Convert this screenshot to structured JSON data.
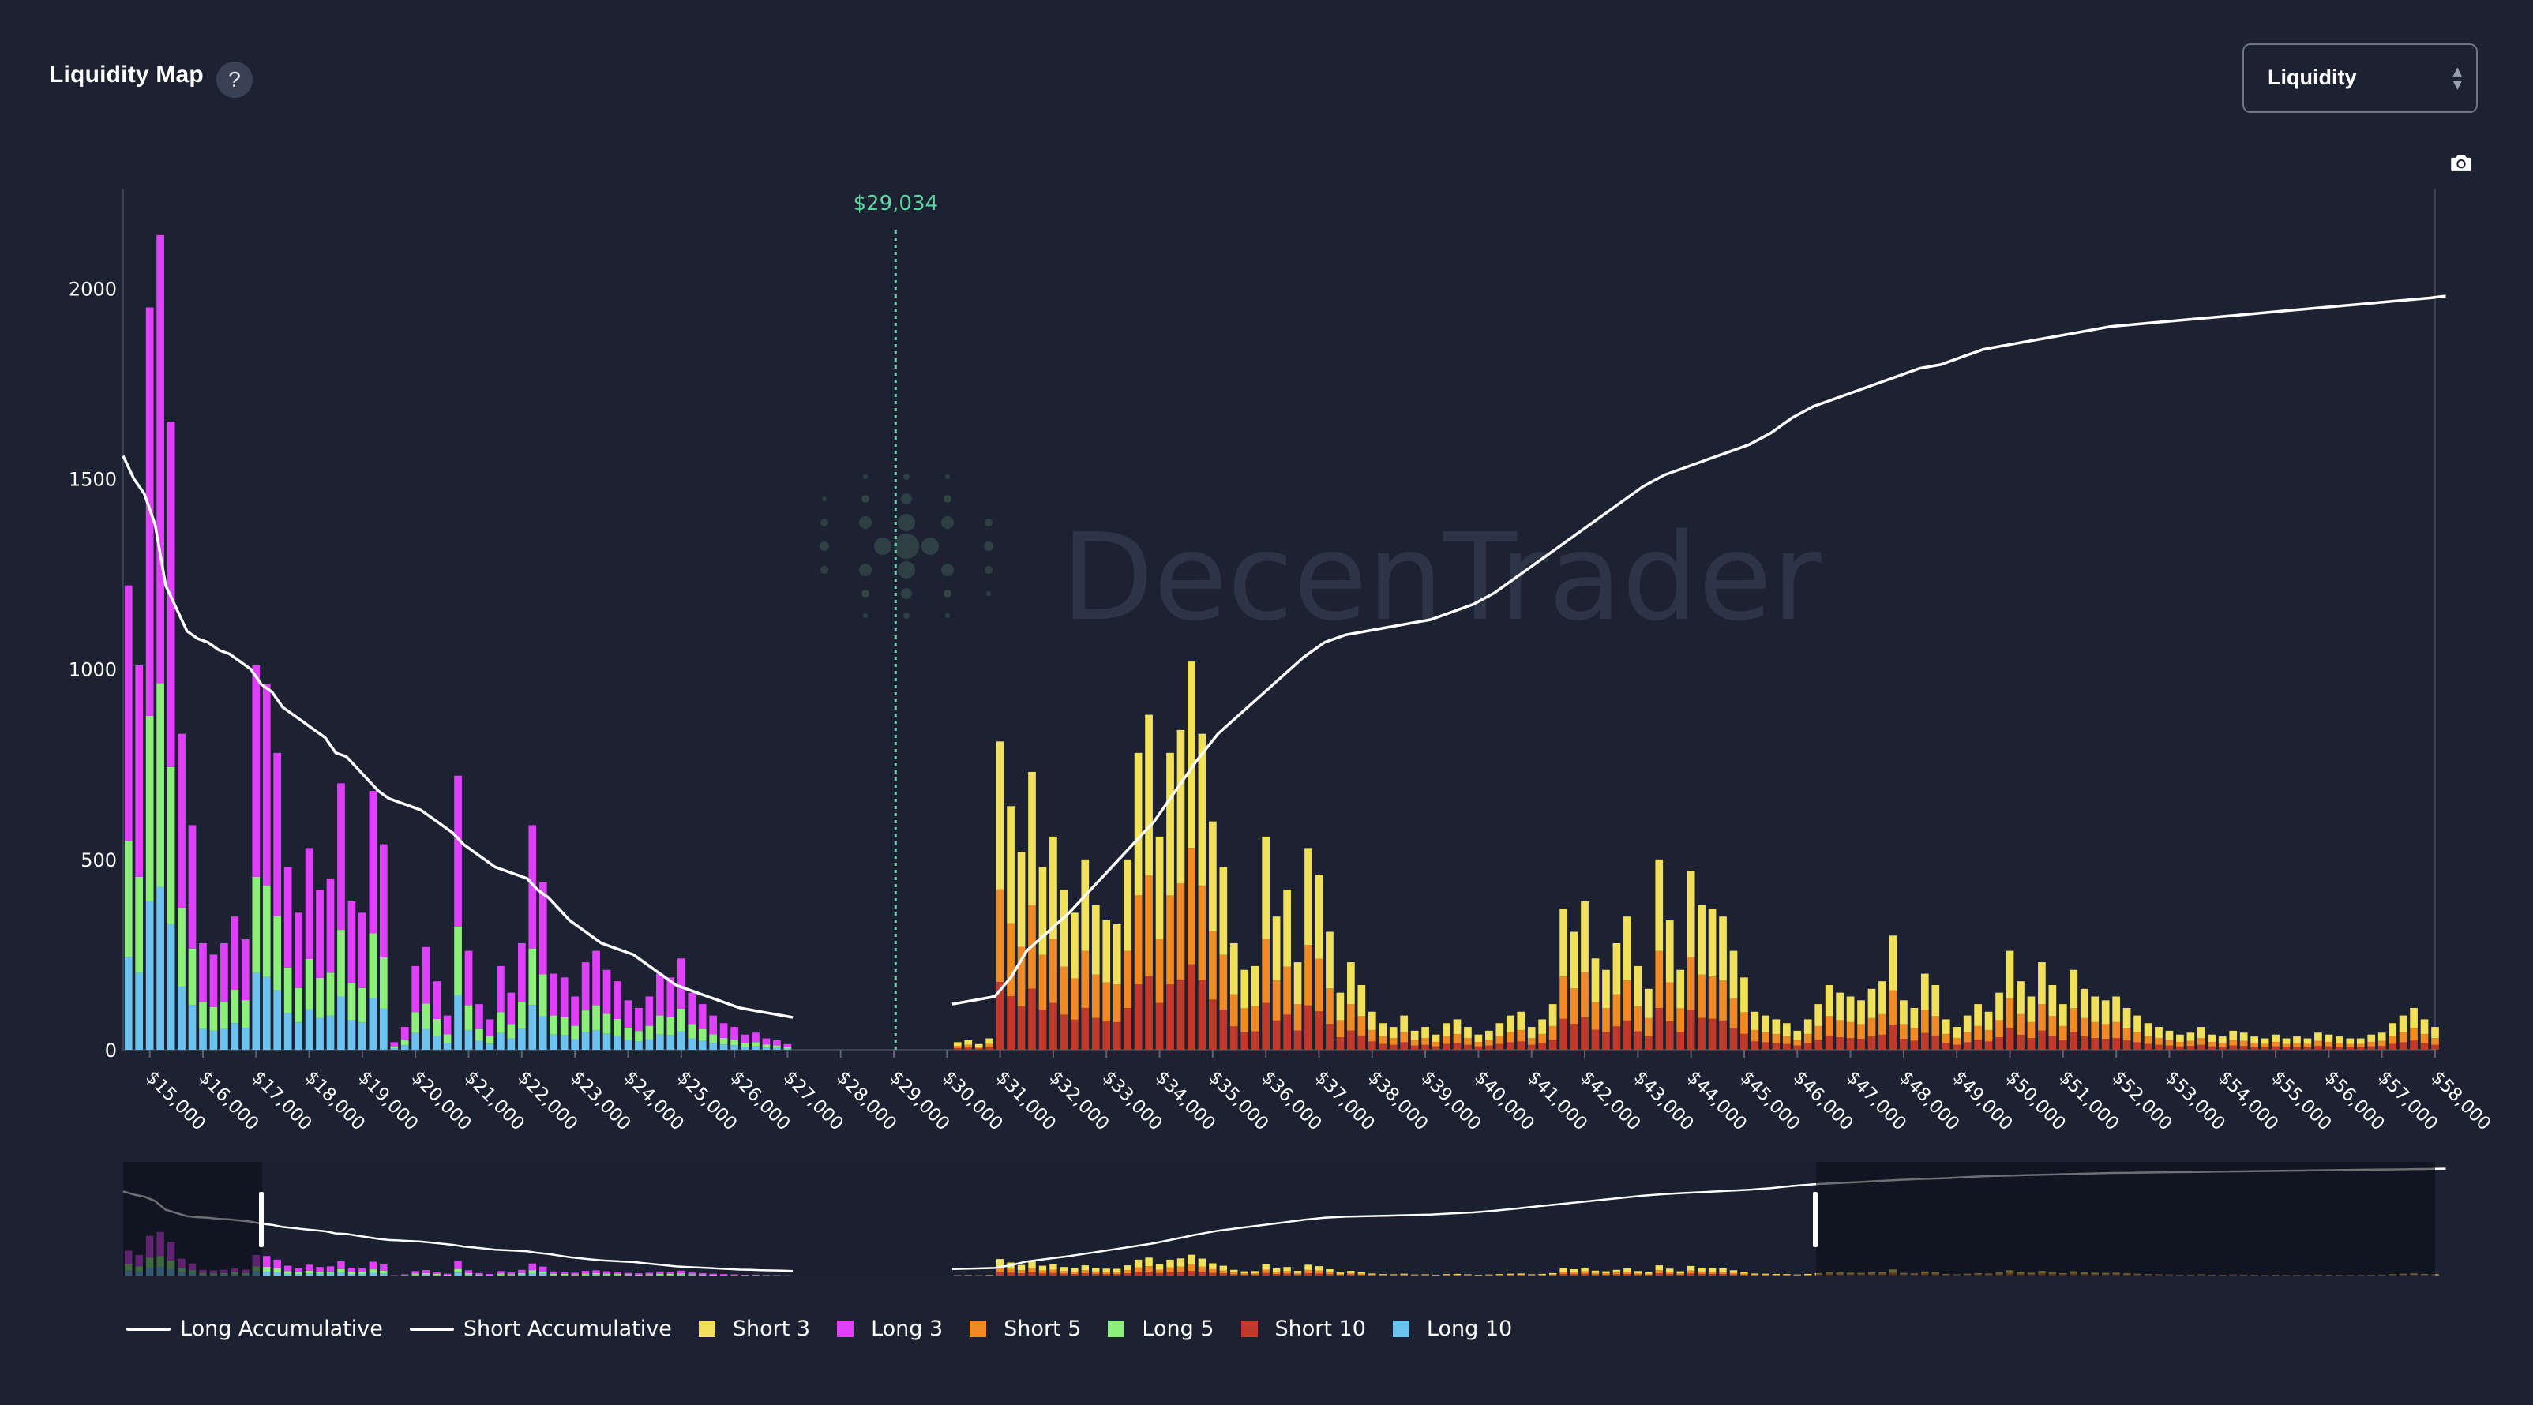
{
  "header": {
    "title": "Liquidity Map",
    "help_label": "?",
    "select_value": "Liquidity"
  },
  "icons": {
    "help": "question-mark-icon",
    "camera": "camera-icon",
    "select": "chevron-up-down-icon"
  },
  "watermark": "DecenTrader",
  "colors": {
    "background": "#1c2232",
    "short3": "#f1e05a",
    "long3": "#e040fb",
    "short5": "#f08a24",
    "long5": "#8cf07a",
    "short10": "#c0392b",
    "long10": "#6cc3f0",
    "current_price": "#5fd3a0",
    "cumulative": "#ffffff"
  },
  "chart_data": {
    "type": "bar",
    "subtype": "stacked",
    "current_price": 29034,
    "current_price_label": "$29,034",
    "xlim": [
      14500,
      58000
    ],
    "ylim": [
      0,
      2260
    ],
    "yticks": [
      0,
      500,
      1000,
      1500,
      2000
    ],
    "xticks": [
      "$15,000",
      "$16,000",
      "$17,000",
      "$18,000",
      "$19,000",
      "$20,000",
      "$21,000",
      "$22,000",
      "$23,000",
      "$24,000",
      "$25,000",
      "$26,000",
      "$27,000",
      "$28,000",
      "$29,000",
      "$30,000",
      "$31,000",
      "$32,000",
      "$33,000",
      "$34,000",
      "$35,000",
      "$36,000",
      "$37,000",
      "$38,000",
      "$39,000",
      "$40,000",
      "$41,000",
      "$42,000",
      "$43,000",
      "$44,000",
      "$45,000",
      "$46,000",
      "$47,000",
      "$48,000",
      "$49,000",
      "$50,000",
      "$51,000",
      "$52,000",
      "$53,000",
      "$54,000",
      "$55,000",
      "$56,000",
      "$57,000",
      "$58,000"
    ],
    "legend": [
      "Long Accumulative",
      "Short Accumulative",
      "Short 3",
      "Long 3",
      "Short 5",
      "Long 5",
      "Short 10",
      "Long 10"
    ],
    "long_totals": {
      "x": [
        14600,
        14800,
        15000,
        15200,
        15400,
        15600,
        15800,
        16000,
        16200,
        16400,
        16600,
        16800,
        17000,
        17200,
        17400,
        17600,
        17800,
        18000,
        18200,
        18400,
        18600,
        18800,
        19000,
        19200,
        19400,
        19600,
        19800,
        20000,
        20200,
        20400,
        20600,
        20800,
        21000,
        21200,
        21400,
        21600,
        21800,
        22000,
        22200,
        22400,
        22600,
        22800,
        23000,
        23200,
        23400,
        23600,
        23800,
        24000,
        24200,
        24400,
        24600,
        24800,
        25000,
        25200,
        25400,
        25600,
        25800,
        26000,
        26200,
        26400,
        26600,
        26800,
        27000
      ],
      "y": [
        1220,
        1010,
        1950,
        2140,
        1650,
        830,
        590,
        280,
        250,
        280,
        350,
        290,
        1010,
        960,
        780,
        480,
        360,
        530,
        420,
        450,
        700,
        390,
        360,
        680,
        540,
        20,
        60,
        220,
        270,
        180,
        90,
        720,
        260,
        120,
        80,
        220,
        150,
        280,
        590,
        440,
        200,
        190,
        140,
        230,
        260,
        210,
        180,
        130,
        110,
        140,
        200,
        190,
        240,
        150,
        120,
        90,
        70,
        60,
        40,
        45,
        30,
        25,
        15
      ],
      "long5_frac": 0.25,
      "long10_frac": 0.2
    },
    "short_totals": {
      "x": [
        30200,
        30400,
        30600,
        30800,
        31000,
        31200,
        31400,
        31600,
        31800,
        32000,
        32200,
        32400,
        32600,
        32800,
        33000,
        33200,
        33400,
        33600,
        33800,
        34000,
        34200,
        34400,
        34600,
        34800,
        35000,
        35200,
        35400,
        35600,
        35800,
        36000,
        36200,
        36400,
        36600,
        36800,
        37000,
        37200,
        37400,
        37600,
        37800,
        38000,
        38200,
        38400,
        38600,
        38800,
        39000,
        39200,
        39400,
        39600,
        39800,
        40000,
        40200,
        40400,
        40600,
        40800,
        41000,
        41200,
        41400,
        41600,
        41800,
        42000,
        42200,
        42400,
        42600,
        42800,
        43000,
        43200,
        43400,
        43600,
        43800,
        44000,
        44200,
        44400,
        44600,
        44800,
        45000,
        45200,
        45400,
        45600,
        45800,
        46000,
        46200,
        46400,
        46600,
        46800,
        47000,
        47200,
        47400,
        47600,
        47800,
        48000,
        48200,
        48400,
        48600,
        48800,
        49000,
        49200,
        49400,
        49600,
        49800,
        50000,
        50200,
        50400,
        50600,
        50800,
        51000,
        51200,
        51400,
        51600,
        51800,
        52000,
        52200,
        52400,
        52600,
        52800,
        53000,
        53200,
        53400,
        53600,
        53800,
        54000,
        54200,
        54400,
        54600,
        54800,
        55000,
        55200,
        55400,
        55600,
        55800,
        56000,
        56200,
        56400,
        56600,
        56800,
        57000,
        57200,
        57400,
        57600,
        57800,
        58000
      ],
      "y": [
        20,
        25,
        15,
        30,
        810,
        640,
        520,
        730,
        480,
        560,
        420,
        360,
        500,
        380,
        340,
        330,
        500,
        780,
        880,
        560,
        780,
        840,
        1020,
        830,
        600,
        480,
        280,
        210,
        220,
        560,
        350,
        420,
        230,
        530,
        460,
        310,
        150,
        230,
        170,
        100,
        70,
        60,
        90,
        50,
        60,
        40,
        70,
        80,
        60,
        40,
        50,
        70,
        90,
        100,
        60,
        80,
        120,
        370,
        310,
        390,
        240,
        210,
        280,
        350,
        220,
        160,
        500,
        340,
        210,
        470,
        380,
        370,
        350,
        260,
        190,
        100,
        90,
        80,
        70,
        50,
        80,
        120,
        170,
        150,
        140,
        130,
        160,
        180,
        300,
        130,
        110,
        200,
        170,
        80,
        60,
        90,
        120,
        100,
        150,
        260,
        180,
        140,
        230,
        170,
        120,
        210,
        160,
        140,
        130,
        140,
        110,
        90,
        70,
        60,
        50,
        40,
        45,
        60,
        40,
        35,
        50,
        45,
        35,
        30,
        40,
        30,
        35,
        30,
        45,
        40,
        35,
        30,
        30,
        40,
        45,
        70,
        90,
        110,
        80,
        60
      ],
      "short5_frac": 0.3,
      "short10_frac": 0.22
    },
    "long_accumulative": {
      "x": [
        14500,
        14700,
        14900,
        15100,
        15300,
        15500,
        15700,
        15900,
        16100,
        16300,
        16500,
        16700,
        16900,
        17100,
        17300,
        17500,
        17700,
        17900,
        18100,
        18300,
        18500,
        18700,
        18900,
        19100,
        19300,
        19500,
        19700,
        19900,
        20100,
        20300,
        20500,
        20700,
        20900,
        21100,
        21300,
        21500,
        21700,
        21900,
        22100,
        22300,
        22500,
        22700,
        22900,
        23100,
        23300,
        23500,
        23700,
        23900,
        24100,
        24300,
        24500,
        24700,
        24900,
        25100,
        25300,
        25500,
        25700,
        25900,
        26100,
        26300,
        26500,
        26700,
        26900,
        27100
      ],
      "y": [
        1560,
        1500,
        1460,
        1380,
        1220,
        1160,
        1100,
        1080,
        1070,
        1050,
        1040,
        1020,
        1000,
        960,
        940,
        900,
        880,
        860,
        840,
        820,
        780,
        770,
        740,
        710,
        680,
        660,
        650,
        640,
        630,
        610,
        590,
        570,
        540,
        520,
        500,
        480,
        470,
        460,
        450,
        420,
        400,
        370,
        340,
        320,
        300,
        280,
        270,
        260,
        250,
        230,
        210,
        190,
        170,
        160,
        150,
        140,
        130,
        120,
        110,
        105,
        100,
        95,
        90,
        85
      ]
    },
    "short_accumulative": {
      "x": [
        30100,
        30500,
        30900,
        31200,
        31500,
        31900,
        32300,
        32700,
        33100,
        33500,
        33900,
        34300,
        34700,
        35100,
        35500,
        35900,
        36300,
        36700,
        37100,
        37500,
        37900,
        38300,
        38700,
        39100,
        39500,
        39900,
        40300,
        40700,
        41100,
        41500,
        41900,
        42300,
        42700,
        43100,
        43500,
        43900,
        44300,
        44700,
        45100,
        45500,
        45900,
        46300,
        46700,
        47100,
        47500,
        47900,
        48300,
        48700,
        49100,
        49500,
        49900,
        50300,
        50700,
        51100,
        51500,
        51900,
        52300,
        52700,
        53100,
        53500,
        53900,
        54300,
        54700,
        55100,
        55500,
        55900,
        56300,
        56700,
        57100,
        57500,
        57900,
        58200
      ],
      "y": [
        120,
        130,
        140,
        190,
        260,
        310,
        360,
        420,
        480,
        540,
        600,
        680,
        760,
        830,
        880,
        930,
        980,
        1030,
        1070,
        1090,
        1100,
        1110,
        1120,
        1130,
        1150,
        1170,
        1200,
        1240,
        1280,
        1320,
        1360,
        1400,
        1440,
        1480,
        1510,
        1530,
        1550,
        1570,
        1590,
        1620,
        1660,
        1690,
        1710,
        1730,
        1750,
        1770,
        1790,
        1800,
        1820,
        1840,
        1850,
        1860,
        1870,
        1880,
        1890,
        1900,
        1905,
        1910,
        1915,
        1920,
        1925,
        1930,
        1935,
        1940,
        1945,
        1950,
        1955,
        1960,
        1965,
        1970,
        1975,
        1980
      ]
    }
  }
}
